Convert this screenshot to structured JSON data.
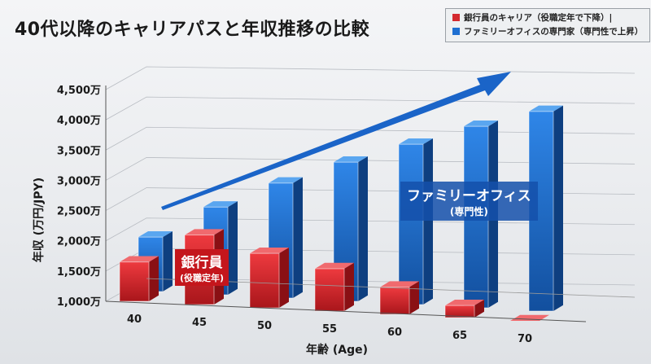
{
  "chart_data": {
    "type": "bar",
    "title": "40代以降のキャリアパスと年収推移の比較",
    "xlabel": "年齢 (Age)",
    "ylabel": "年収 (万円/JPY)",
    "categories": [
      "40",
      "45",
      "50",
      "55",
      "60",
      "65",
      "70"
    ],
    "yticks": [
      "1,000万",
      "1,500万",
      "2,000万",
      "2,500万",
      "3,000万",
      "3,500万",
      "4,000万",
      "4,500万"
    ],
    "ylim": [
      1000,
      4500
    ],
    "grid": true,
    "legend_position": "top-right",
    "series": [
      {
        "name": "銀行員のキャリア（役職定年で下降）|",
        "color": "#d42a2f",
        "values": [
          1650,
          2150,
          1900,
          1700,
          1450,
          1200,
          1000
        ]
      },
      {
        "name": "ファミリーオフィスの専門家（専門性で上昇）",
        "color": "#1f6fd1",
        "values": [
          1900,
          2450,
          2900,
          3300,
          3650,
          4000,
          4300
        ]
      }
    ],
    "annotations": {
      "red_label": "銀行員",
      "red_sublabel": "(役職定年)",
      "blue_label": "ファミリーオフィス",
      "blue_sublabel": "(専門性)"
    }
  }
}
